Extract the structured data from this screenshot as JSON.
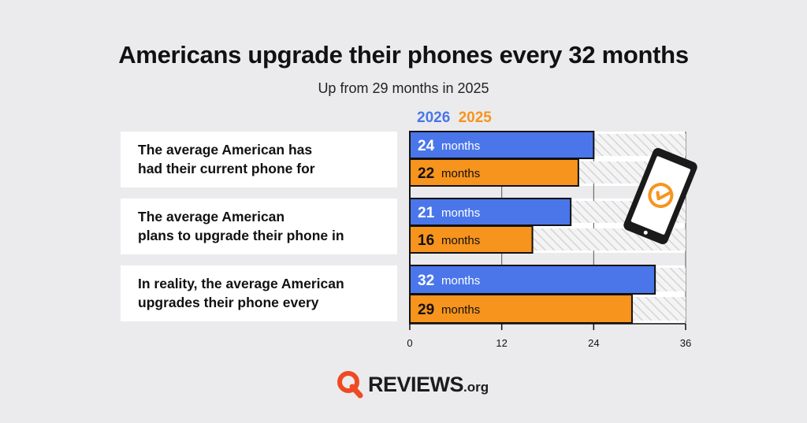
{
  "title": "Americans upgrade their phones every 32 months",
  "subtitle": "Up from 29 months in 2025",
  "colors": {
    "series_2026": "#4a76ea",
    "series_2025": "#f7941d",
    "background": "#ebebed"
  },
  "chart_data": {
    "type": "bar",
    "orientation": "horizontal",
    "categories": [
      "The average American has had their current phone for",
      "The average American plans to upgrade their phone in",
      "In reality, the average American upgrades their phone every"
    ],
    "category_lines": [
      [
        "The average American has",
        "had their current phone for"
      ],
      [
        "The average American",
        "plans to upgrade their phone in"
      ],
      [
        "In reality, the average American",
        "upgrades their phone every"
      ]
    ],
    "series": [
      {
        "name": "2026",
        "values": [
          24,
          21,
          32
        ]
      },
      {
        "name": "2025",
        "values": [
          22,
          16,
          29
        ]
      }
    ],
    "unit": "months",
    "xlim": [
      0,
      36
    ],
    "xticks": [
      "0",
      "12",
      "24",
      "36"
    ],
    "legend_position": "top-left"
  },
  "brand": {
    "name": "REVIEWS",
    "suffix": ".org",
    "logo_icon": "q-magnifier-icon"
  },
  "illustration": {
    "icon": "phone-clock-icon"
  }
}
